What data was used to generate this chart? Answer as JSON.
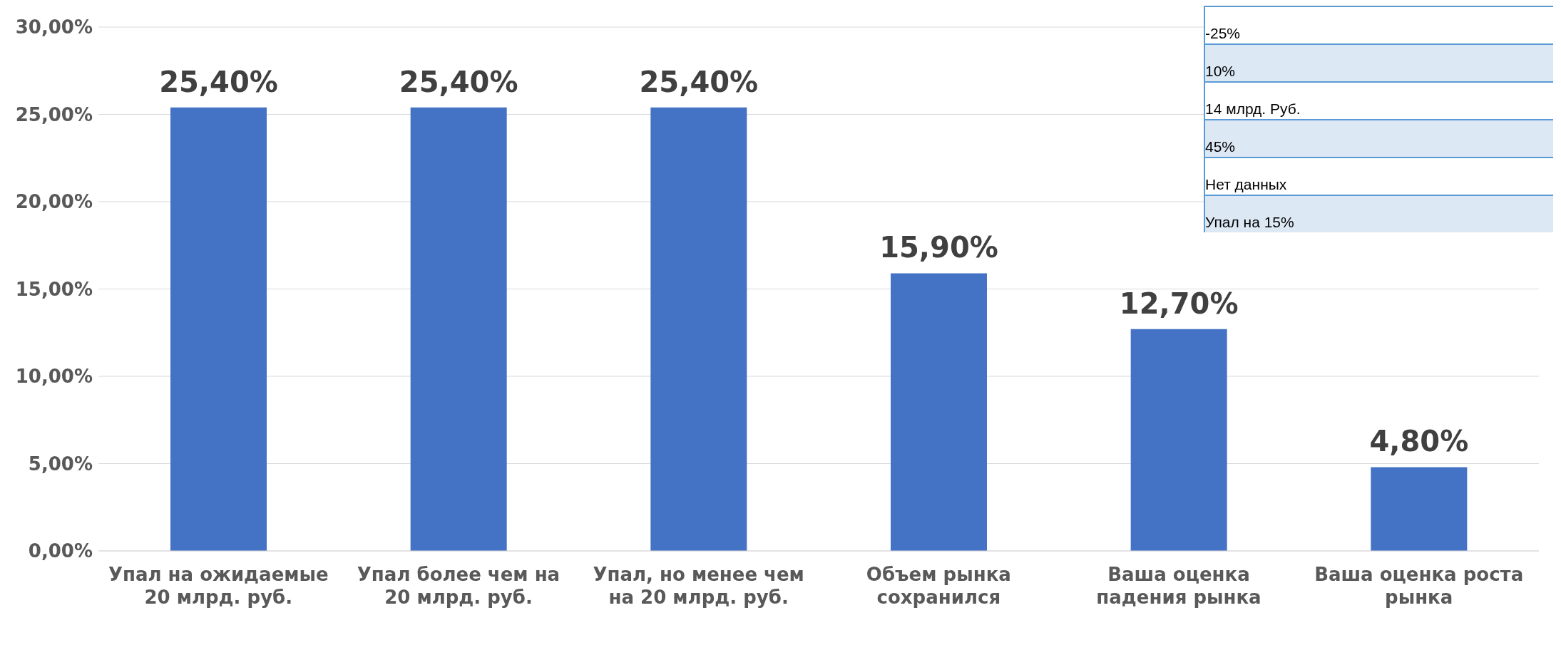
{
  "chart_data": {
    "type": "bar",
    "categories": [
      "Упал на ожидаемые 20 млрд. руб.",
      "Упал более чем на 20 млрд. руб.",
      "Упал, но менее чем на 20 млрд. руб.",
      "Объем рынка сохранился",
      "Ваша оценка падения рынка",
      "Ваша оценка роста рынка"
    ],
    "values": [
      25.4,
      25.4,
      25.4,
      15.9,
      12.7,
      4.8
    ],
    "value_labels": [
      "25,40%",
      "25,40%",
      "25,40%",
      "15,90%",
      "12,70%",
      "4,80%"
    ],
    "color": "#4472c4",
    "ylim": [
      0,
      30
    ],
    "yticks": [
      {
        "value": 0,
        "label": "0,00%"
      },
      {
        "value": 5,
        "label": "5,00%"
      },
      {
        "value": 10,
        "label": "10,00%"
      },
      {
        "value": 15,
        "label": "15,00%"
      },
      {
        "value": 20,
        "label": "20,00%"
      },
      {
        "value": 25,
        "label": "25,00%"
      },
      {
        "value": 30,
        "label": "30,00%"
      }
    ],
    "grid": "y",
    "annotations": [
      "-25%",
      "10%",
      "14 млрд. Руб.",
      "45%",
      "Нет данных",
      "Упал на 15%"
    ]
  }
}
